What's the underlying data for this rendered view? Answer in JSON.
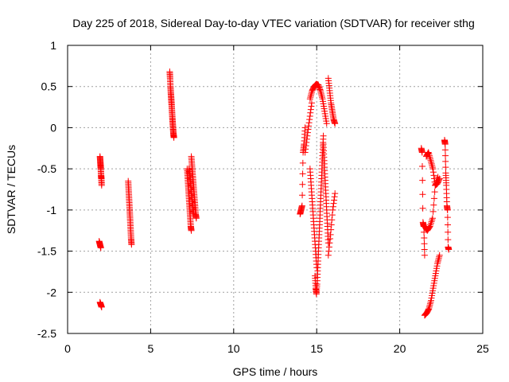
{
  "chart_data": {
    "type": "scatter",
    "title": "Day 225 of 2018, Sidereal Day-to-day VTEC variation (SDTVAR) for receiver sthg",
    "xlabel": "GPS time / hours",
    "ylabel": "SDTVAR / TECUs",
    "xlim": [
      0,
      25
    ],
    "ylim": [
      -2.5,
      1
    ],
    "xticks": [
      "0",
      "5",
      "10",
      "15",
      "20",
      "25"
    ],
    "yticks": [
      "-2.5",
      "-2",
      "-1.5",
      "-1",
      "-0.5",
      "0",
      "0.5",
      "1"
    ],
    "xtick_values": [
      0,
      5,
      10,
      15,
      20,
      25
    ],
    "ytick_values": [
      -2.5,
      -2,
      -1.5,
      -1,
      -0.5,
      0,
      0.5,
      1
    ],
    "grid": true,
    "marker": "+",
    "color": "#ff0000",
    "series": [
      {
        "name": "SDTVAR",
        "segments": [
          {
            "x0": 1.95,
            "x1": 2.05,
            "ys": [
              -0.35,
              -0.4,
              -0.45,
              -0.5,
              -0.58,
              -0.62,
              -0.7
            ]
          },
          {
            "x0": 1.9,
            "x1": 2.0,
            "ys": [
              -1.38,
              -1.42,
              -1.46
            ]
          },
          {
            "x0": 1.95,
            "x1": 2.05,
            "ys": [
              -2.12,
              -2.15,
              -2.18
            ]
          },
          {
            "x0": 3.65,
            "x1": 3.85,
            "ys": [
              -0.65,
              -0.75,
              -0.85,
              -0.95,
              -1.05,
              -1.15,
              -1.25,
              -1.35,
              -1.42
            ]
          },
          {
            "x0": 6.15,
            "x1": 6.4,
            "ys": [
              0.68,
              0.6,
              0.5,
              0.42,
              0.35,
              0.28,
              0.2,
              0.12,
              0.05,
              -0.02,
              -0.08,
              -0.12
            ]
          },
          {
            "x0": 7.2,
            "x1": 7.45,
            "ys": [
              -0.5,
              -0.6,
              -0.7,
              -0.8,
              -0.9,
              -1.0,
              -1.1,
              -1.2,
              -1.25
            ]
          },
          {
            "x0": 7.45,
            "x1": 7.75,
            "ys": [
              -0.35,
              -0.45,
              -0.55,
              -0.65,
              -0.75,
              -0.85,
              -0.95,
              -1.05,
              -1.1
            ]
          },
          {
            "x0": 7.3,
            "x1": 7.6,
            "ys": [
              -0.5,
              -0.58,
              -0.66,
              -0.74,
              -0.82,
              -0.9,
              -0.98,
              -1.06
            ]
          },
          {
            "x0": 14.0,
            "x1": 14.3,
            "ys": [
              -1.05,
              -1.0,
              -0.95,
              -0.3,
              -0.2,
              0.0
            ]
          },
          {
            "x0": 14.3,
            "x1": 14.7,
            "ys": [
              -0.3,
              -0.1,
              0.1,
              0.3
            ]
          },
          {
            "x0": 14.6,
            "x1": 15.0,
            "ys": [
              -0.5,
              -0.7,
              -0.9,
              -1.1,
              -1.3,
              -1.5,
              -1.7
            ]
          },
          {
            "x0": 14.9,
            "x1": 15.4,
            "ys": [
              -1.8,
              -1.95,
              -2.02,
              -1.9,
              -1.7,
              -1.5,
              -1.3,
              -1.1,
              -0.9,
              -0.7,
              -0.5,
              -0.3,
              -0.1
            ]
          },
          {
            "x0": 14.6,
            "x1": 15.6,
            "ys": [
              0.35,
              0.45,
              0.5,
              0.53,
              0.52,
              0.45,
              0.35,
              0.2,
              0.05
            ]
          },
          {
            "x0": 15.4,
            "x1": 15.7,
            "ys": [
              -0.2,
              -0.4,
              -0.6,
              -0.8,
              -1.0,
              -1.2,
              -1.4
            ]
          },
          {
            "x0": 15.7,
            "x1": 16.1,
            "ys": [
              -1.55,
              -1.3,
              -1.0,
              -0.8
            ]
          },
          {
            "x0": 15.7,
            "x1": 16.1,
            "ys": [
              0.6,
              0.45,
              0.3,
              0.2,
              0.1,
              0.05
            ]
          },
          {
            "x0": 21.3,
            "x1": 21.5,
            "ys": [
              -0.25,
              -0.3,
              -1.15,
              -1.2,
              -1.55
            ]
          },
          {
            "x0": 21.5,
            "x1": 22.4,
            "ys": [
              -2.28,
              -2.25,
              -2.2,
              -2.1,
              -1.95,
              -1.8,
              -1.65,
              -1.55
            ]
          },
          {
            "x0": 21.5,
            "x1": 22.3,
            "ys": [
              -1.2,
              -1.25,
              -1.2,
              -1.1,
              -0.7,
              -0.6
            ]
          },
          {
            "x0": 21.6,
            "x1": 22.4,
            "ys": [
              -0.35,
              -0.3,
              -0.4,
              -0.5,
              -0.7,
              -0.68,
              -0.62
            ]
          },
          {
            "x0": 22.7,
            "x1": 22.95,
            "ys": [
              -0.15,
              -0.2,
              -0.55,
              -0.7,
              -0.95,
              -1.0,
              -1.45,
              -1.48
            ]
          }
        ]
      }
    ]
  }
}
